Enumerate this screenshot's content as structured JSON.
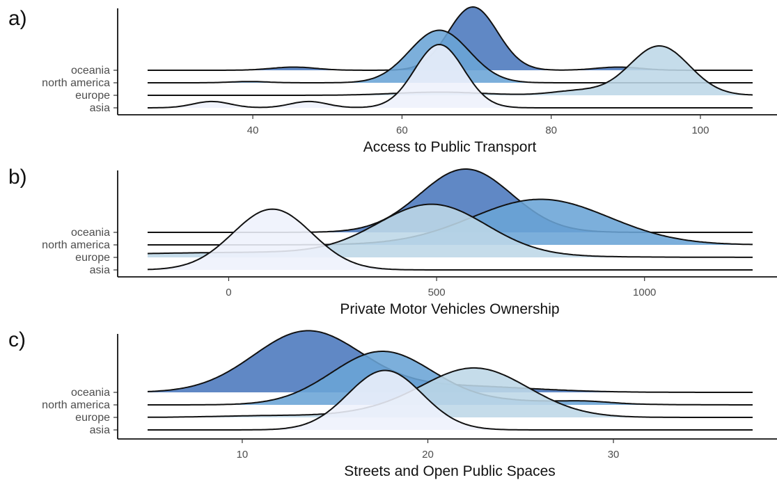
{
  "chart_data": [
    {
      "type": "ridgeline",
      "panel_label": "a)",
      "xlabel": "Access to Public Transport",
      "xlim": [
        25.9,
        107
      ],
      "xticks": [
        40,
        60,
        80,
        100
      ],
      "categories": [
        "oceania",
        "north america",
        "europe",
        "asia"
      ],
      "colors": {
        "oceania": "#4a77bd",
        "north america": "#6aa4d6",
        "europe": "#bdd7e7",
        "asia": "#eef1fc"
      },
      "series": [
        {
          "name": "oceania",
          "components": [
            {
              "mean": 69.5,
              "sd": 3.3,
              "peak": 1.0
            },
            {
              "mean": 45.5,
              "sd": 3.0,
              "peak": 0.05
            },
            {
              "mean": 89,
              "sd": 3.0,
              "peak": 0.05
            }
          ]
        },
        {
          "name": "north america",
          "components": [
            {
              "mean": 65,
              "sd": 4.0,
              "peak": 0.83
            },
            {
              "mean": 39.5,
              "sd": 2.5,
              "peak": 0.02
            }
          ]
        },
        {
          "name": "europe",
          "components": [
            {
              "mean": 94.5,
              "sd": 4.0,
              "peak": 0.78
            },
            {
              "mean": 83.5,
              "sd": 3.5,
              "peak": 0.07
            },
            {
              "mean": 65,
              "sd": 6.0,
              "peak": 0.05
            }
          ]
        },
        {
          "name": "asia",
          "components": [
            {
              "mean": 65,
              "sd": 3.3,
              "peak": 1.0
            },
            {
              "mean": 34.5,
              "sd": 2.5,
              "peak": 0.1
            },
            {
              "mean": 47.5,
              "sd": 2.5,
              "peak": 0.1
            }
          ]
        }
      ]
    },
    {
      "type": "ridgeline",
      "panel_label": "b)",
      "xlabel": "Private Motor Vehicles Ownership",
      "xlim": [
        -195,
        1260
      ],
      "xticks": [
        0,
        500,
        1000
      ],
      "categories": [
        "oceania",
        "north america",
        "europe",
        "asia"
      ],
      "colors": {
        "oceania": "#4a77bd",
        "north america": "#6aa4d6",
        "europe": "#bdd7e7",
        "asia": "#eef1fc"
      },
      "series": [
        {
          "name": "oceania",
          "components": [
            {
              "mean": 570,
              "sd": 110,
              "peak": 1.0
            }
          ]
        },
        {
          "name": "north america",
          "components": [
            {
              "mean": 750,
              "sd": 165,
              "peak": 0.72
            }
          ]
        },
        {
          "name": "europe",
          "components": [
            {
              "mean": 490,
              "sd": 130,
              "peak": 0.79
            },
            {
              "mean": 100,
              "sd": 400,
              "peak": 0.08
            }
          ]
        },
        {
          "name": "asia",
          "components": [
            {
              "mean": 105,
              "sd": 95,
              "peak": 0.96
            }
          ]
        }
      ]
    },
    {
      "type": "ridgeline",
      "panel_label": "c)",
      "xlabel": "Streets and Open Public Spaces",
      "xlim": [
        4.9,
        37.5
      ],
      "xticks": [
        10,
        20,
        30
      ],
      "categories": [
        "oceania",
        "north america",
        "europe",
        "asia"
      ],
      "colors": {
        "oceania": "#4a77bd",
        "north america": "#6aa4d6",
        "europe": "#bdd7e7",
        "asia": "#eef1fc"
      },
      "series": [
        {
          "name": "oceania",
          "components": [
            {
              "mean": 13.5,
              "sd": 2.9,
              "peak": 0.96
            },
            {
              "mean": 21.5,
              "sd": 4.0,
              "peak": 0.1
            }
          ]
        },
        {
          "name": "north america",
          "components": [
            {
              "mean": 17.5,
              "sd": 2.7,
              "peak": 0.83
            },
            {
              "mean": 24,
              "sd": 4.0,
              "peak": 0.06
            },
            {
              "mean": 28.5,
              "sd": 1.3,
              "peak": 0.03
            }
          ]
        },
        {
          "name": "europe",
          "components": [
            {
              "mean": 22.5,
              "sd": 2.9,
              "peak": 0.78
            },
            {
              "mean": 12,
              "sd": 3.0,
              "peak": 0.03
            },
            {
              "mean": 17,
              "sd": 2.0,
              "peak": 0.04
            }
          ]
        },
        {
          "name": "asia",
          "components": [
            {
              "mean": 17.7,
              "sd": 2.0,
              "peak": 0.94
            }
          ]
        }
      ]
    }
  ]
}
